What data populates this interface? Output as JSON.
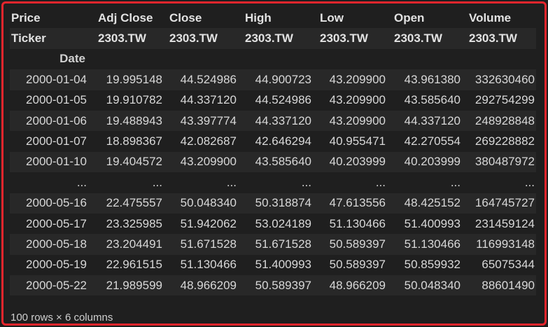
{
  "table": {
    "header_rows": [
      [
        "Price",
        "Adj Close",
        "Close",
        "High",
        "Low",
        "Open",
        "Volume"
      ],
      [
        "Ticker",
        "2303.TW",
        "2303.TW",
        "2303.TW",
        "2303.TW",
        "2303.TW",
        "2303.TW"
      ]
    ],
    "index_name": "Date",
    "rows": [
      [
        "2000-01-04",
        "19.995148",
        "44.524986",
        "44.900723",
        "43.209900",
        "43.961380",
        "332630460"
      ],
      [
        "2000-01-05",
        "19.910782",
        "44.337120",
        "44.524986",
        "43.209900",
        "43.585640",
        "292754299"
      ],
      [
        "2000-01-06",
        "19.488943",
        "43.397774",
        "44.337120",
        "43.209900",
        "44.337120",
        "248928848"
      ],
      [
        "2000-01-07",
        "18.898367",
        "42.082687",
        "42.646294",
        "40.955471",
        "42.270554",
        "269228882"
      ],
      [
        "2000-01-10",
        "19.404572",
        "43.209900",
        "43.585640",
        "40.203999",
        "40.203999",
        "380487972"
      ],
      [
        "...",
        "...",
        "...",
        "...",
        "...",
        "...",
        "..."
      ],
      [
        "2000-05-16",
        "22.475557",
        "50.048340",
        "50.318874",
        "47.613556",
        "48.425152",
        "164745727"
      ],
      [
        "2000-05-17",
        "23.325985",
        "51.942062",
        "53.024189",
        "51.130466",
        "51.400993",
        "231459124"
      ],
      [
        "2000-05-18",
        "23.204491",
        "51.671528",
        "51.671528",
        "50.589397",
        "51.130466",
        "116993148"
      ],
      [
        "2000-05-19",
        "22.961515",
        "51.130466",
        "51.400993",
        "50.589397",
        "50.859932",
        "65075344"
      ],
      [
        "2000-05-22",
        "21.989599",
        "48.966209",
        "50.589397",
        "48.966209",
        "50.048340",
        "88601490"
      ]
    ]
  },
  "footer": {
    "summary": "100 rows × 6 columns"
  },
  "colors": {
    "background": "#1f1f1f",
    "alt_row": "#282828",
    "border": "#e8262d",
    "text": "#d8d8d8"
  }
}
